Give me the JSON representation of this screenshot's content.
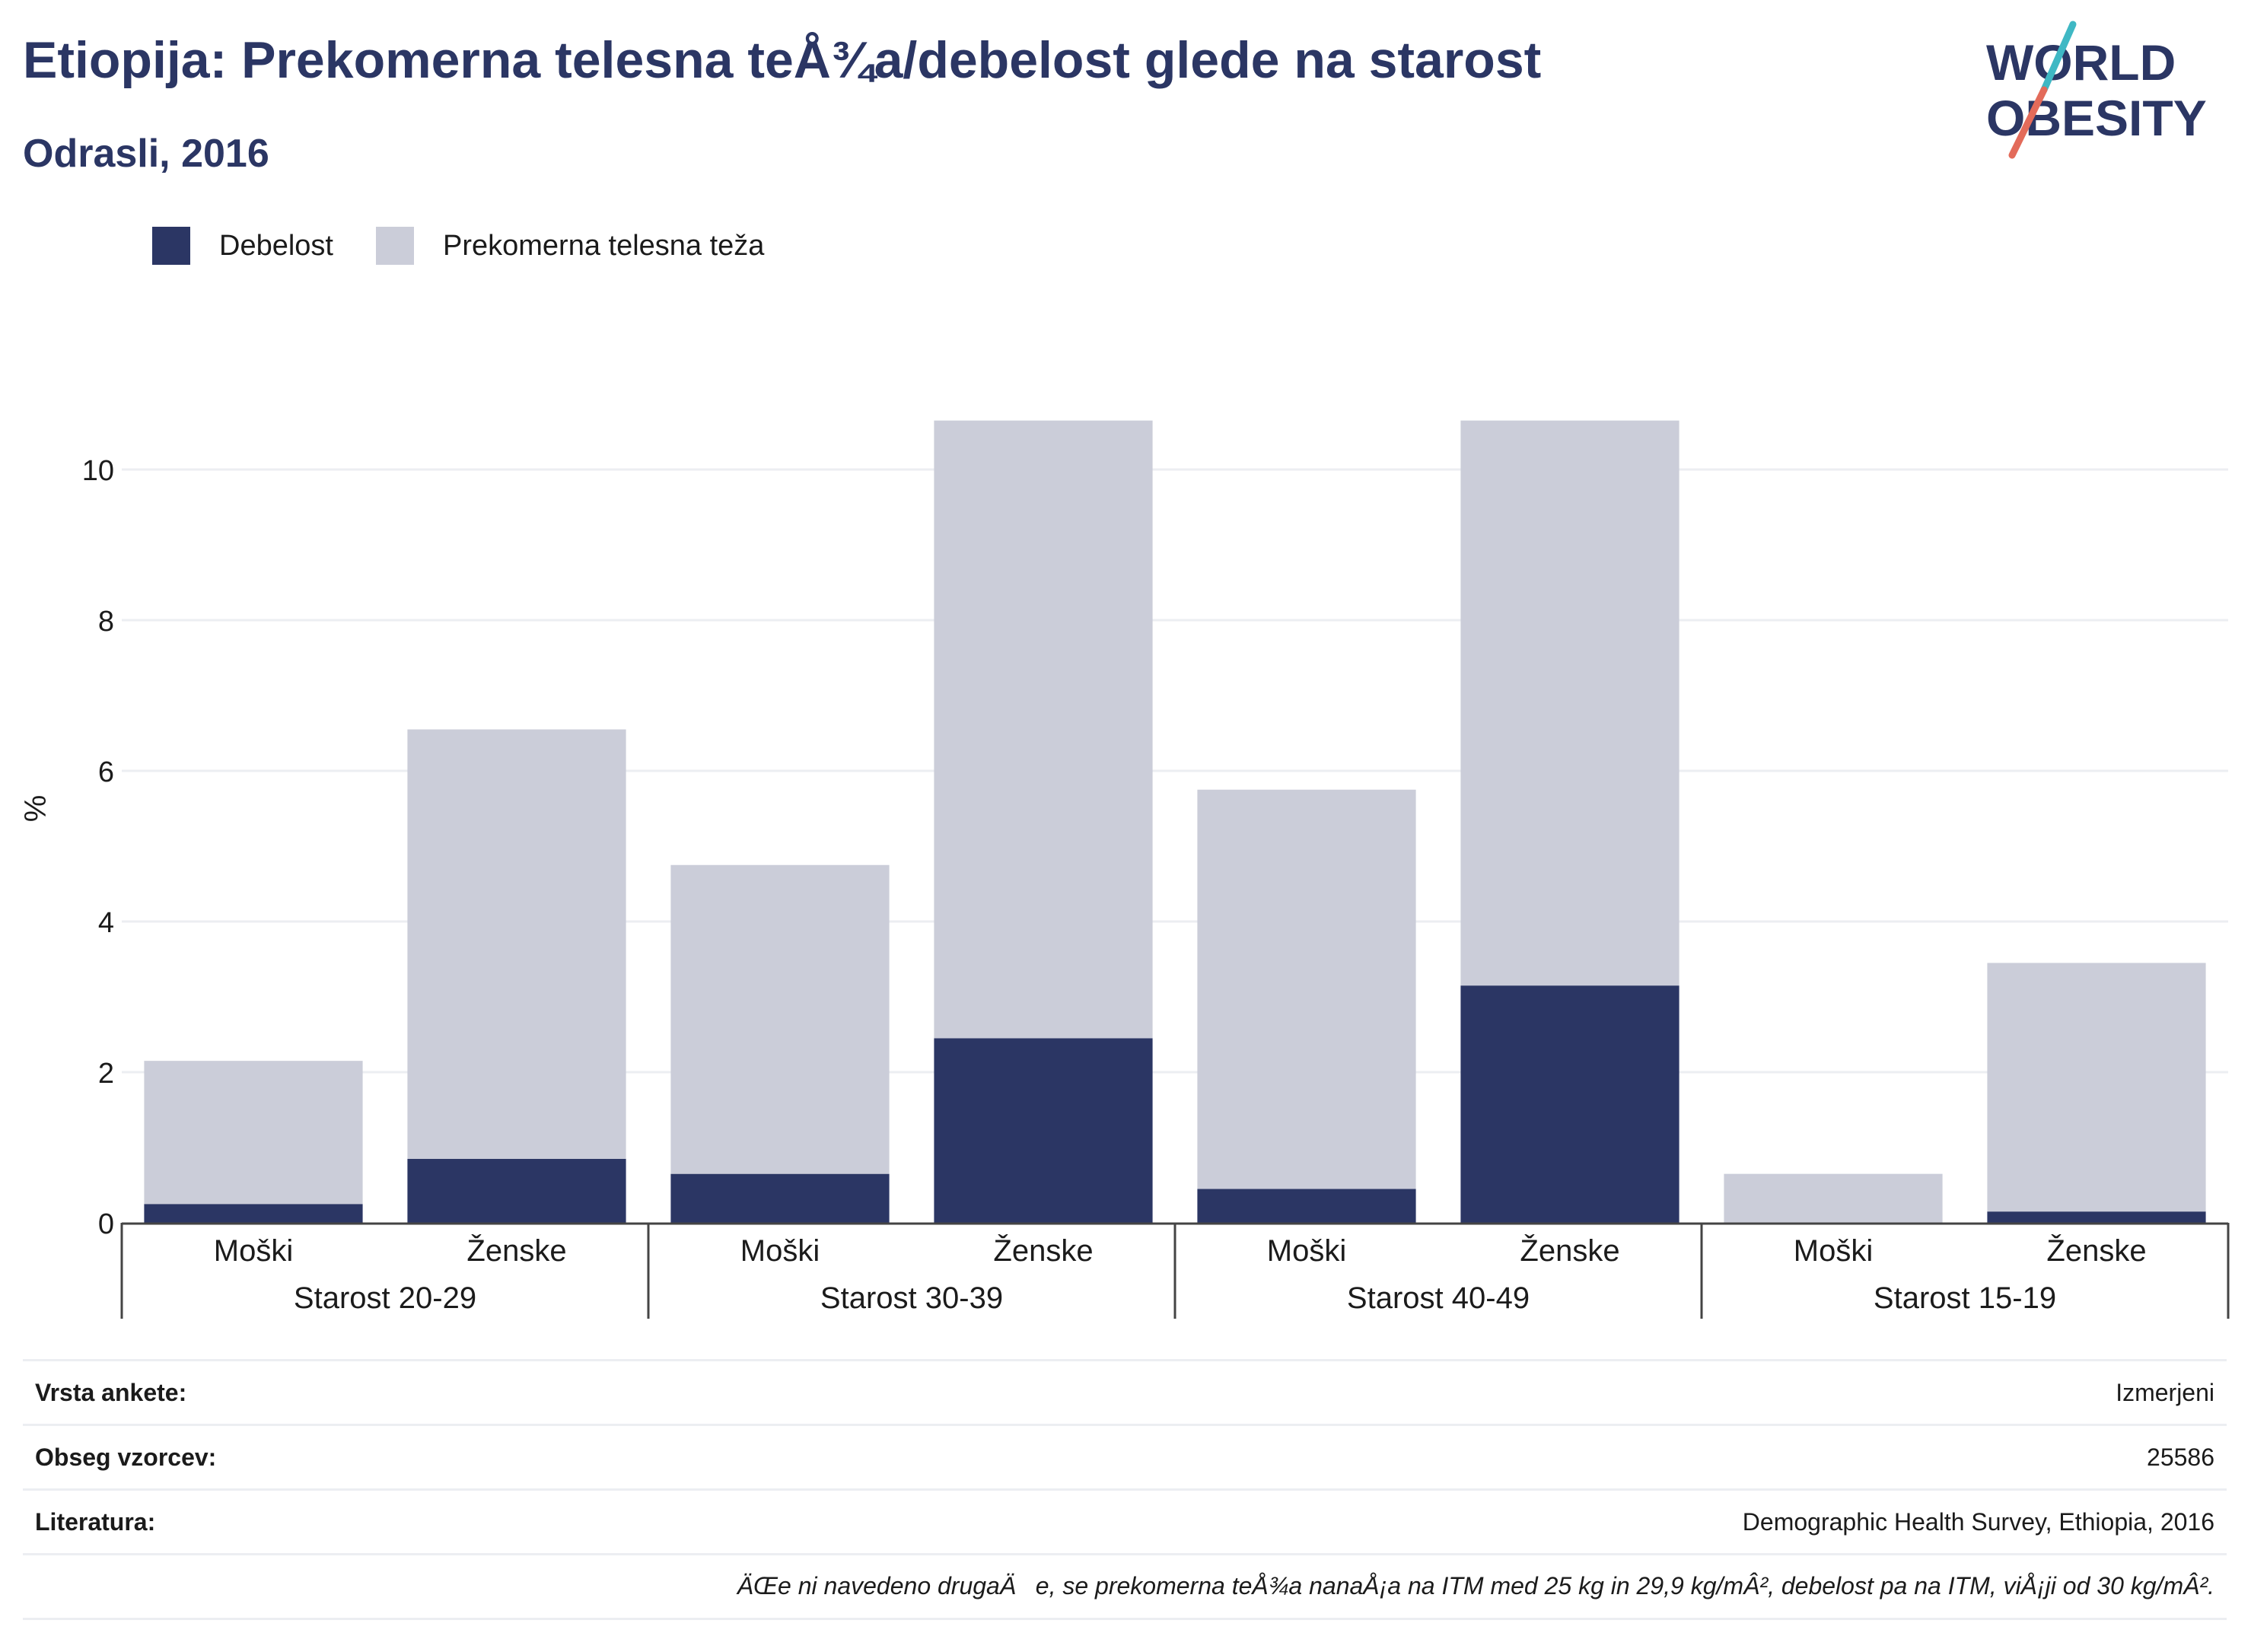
{
  "header": {
    "title": "Etiopija: Prekomerna telesna teÅ¾a/debelost glede na starost",
    "subtitle": "Odrasli, 2016"
  },
  "logo": {
    "line1": "WORLD",
    "line2": "OBESITY"
  },
  "legend": [
    {
      "label": "Debelost",
      "color": "#2b3664"
    },
    {
      "label": "Prekomerna telesna teža",
      "color": "#cbcdd9"
    }
  ],
  "chart_data": {
    "type": "bar",
    "stacked": true,
    "ylabel": "%",
    "ylim": [
      0,
      11
    ],
    "yticks": [
      0,
      2,
      4,
      6,
      8,
      10
    ],
    "grid": true,
    "legend_position": "top-left",
    "groups": [
      "Starost 20-29",
      "Starost 30-39",
      "Starost 40-49",
      "Starost 15-19"
    ],
    "categories": [
      "Moški",
      "Ženske",
      "Moški",
      "Ženske",
      "Moški",
      "Ženske",
      "Moški",
      "Ženske"
    ],
    "series": [
      {
        "name": "Debelost",
        "color": "#2b3664",
        "values": [
          0.25,
          0.85,
          0.65,
          2.45,
          0.45,
          3.15,
          0.0,
          0.15
        ]
      },
      {
        "name": "Prekomerna telesna teža",
        "color": "#cbcdd9",
        "values": [
          1.9,
          5.7,
          4.1,
          8.2,
          5.3,
          7.5,
          0.65,
          3.3
        ]
      }
    ]
  },
  "info": {
    "rows": [
      {
        "key": "Vrsta ankete:",
        "value": "Izmerjeni"
      },
      {
        "key": "Obseg vzorcev:",
        "value": "25586"
      },
      {
        "key": "Literatura:",
        "value": "Demographic Health Survey, Ethiopia, 2016"
      }
    ],
    "note": "ÄŒe ni navedeno drugaÄe, se prekomerna teÅ¾a nanaÅ¡a na ITM med 25 kg in 29,9 kg/mÂ², debelost pa na ITM, viÅ¡ji od 30 kg/mÂ²."
  }
}
